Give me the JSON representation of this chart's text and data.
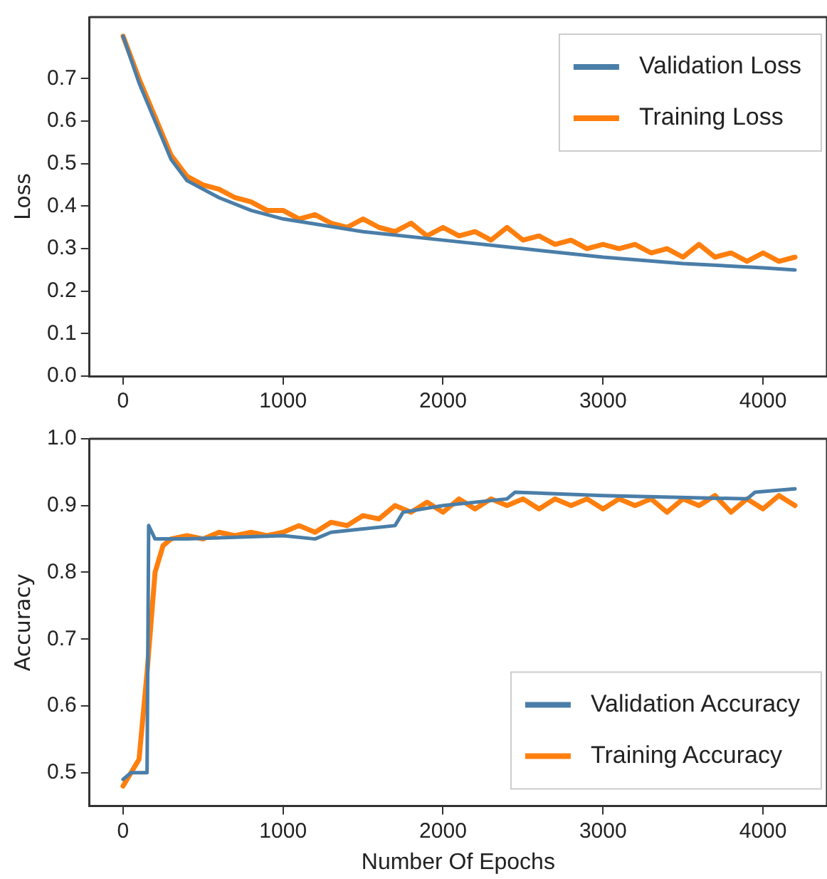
{
  "chart_data": [
    {
      "type": "line",
      "ylabel": "Loss",
      "xlim": [
        -210,
        4400
      ],
      "xticks": [
        0,
        1000,
        2000,
        3000,
        4000
      ],
      "ylim": [
        0,
        0.845
      ],
      "yticks": [
        {
          "value": 0,
          "label": "0.0"
        },
        0.1,
        0.2,
        0.3,
        0.4,
        0.5,
        0.6,
        0.7
      ],
      "grid": false,
      "legend": "top right",
      "marker": "none",
      "line_style": "solid",
      "series": [
        {
          "name": "Validation Loss",
          "color": "#4a7ea8",
          "x": [
            0,
            100,
            200,
            300,
            400,
            600,
            800,
            1000,
            1500,
            2000,
            2500,
            3000,
            3500,
            4000,
            4200
          ],
          "values": [
            0.8,
            0.69,
            0.6,
            0.51,
            0.46,
            0.42,
            0.39,
            0.37,
            0.34,
            0.32,
            0.3,
            0.28,
            0.265,
            0.255,
            0.25
          ]
        },
        {
          "name": "Training Loss",
          "color": "#ff7f0e",
          "x": [
            0,
            100,
            200,
            300,
            400,
            500,
            600,
            700,
            800,
            900,
            1000,
            1100,
            1200,
            1300,
            1400,
            1500,
            1600,
            1700,
            1800,
            1900,
            2000,
            2100,
            2200,
            2300,
            2400,
            2500,
            2600,
            2700,
            2800,
            2900,
            3000,
            3100,
            3200,
            3300,
            3400,
            3500,
            3600,
            3700,
            3800,
            3900,
            4000,
            4100,
            4200
          ],
          "values": [
            0.8,
            0.7,
            0.61,
            0.52,
            0.47,
            0.45,
            0.44,
            0.42,
            0.41,
            0.39,
            0.39,
            0.37,
            0.38,
            0.36,
            0.35,
            0.37,
            0.35,
            0.34,
            0.36,
            0.33,
            0.35,
            0.33,
            0.34,
            0.32,
            0.35,
            0.32,
            0.33,
            0.31,
            0.32,
            0.3,
            0.31,
            0.3,
            0.31,
            0.29,
            0.3,
            0.28,
            0.31,
            0.28,
            0.29,
            0.27,
            0.29,
            0.27,
            0.28
          ]
        }
      ]
    },
    {
      "type": "line",
      "xlabel": "Number Of Epochs",
      "ylabel": "Accuracy",
      "xlim": [
        -210,
        4400
      ],
      "xticks": [
        0,
        1000,
        2000,
        3000,
        4000
      ],
      "ylim": [
        0.45,
        1.0
      ],
      "yticks": [
        0.5,
        0.6,
        0.7,
        0.8,
        0.9,
        {
          "value": 1,
          "label": "1.0"
        }
      ],
      "grid": false,
      "legend": "bottom right",
      "marker": "none",
      "line_style": "solid",
      "series": [
        {
          "name": "Validation Accuracy",
          "color": "#4a7ea8",
          "x": [
            0,
            50,
            150,
            160,
            200,
            400,
            1000,
            1200,
            1300,
            1700,
            1750,
            2000,
            2400,
            2450,
            3000,
            3900,
            3950,
            4200
          ],
          "values": [
            0.49,
            0.5,
            0.5,
            0.87,
            0.85,
            0.85,
            0.855,
            0.85,
            0.86,
            0.87,
            0.89,
            0.9,
            0.91,
            0.92,
            0.915,
            0.91,
            0.92,
            0.925
          ]
        },
        {
          "name": "Training Accuracy",
          "color": "#ff7f0e",
          "x": [
            0,
            50,
            100,
            150,
            200,
            250,
            300,
            400,
            500,
            600,
            700,
            800,
            900,
            1000,
            1100,
            1200,
            1300,
            1400,
            1500,
            1600,
            1700,
            1800,
            1900,
            2000,
            2100,
            2200,
            2300,
            2400,
            2500,
            2600,
            2700,
            2800,
            2900,
            3000,
            3100,
            3200,
            3300,
            3400,
            3500,
            3600,
            3700,
            3800,
            3900,
            4000,
            4100,
            4200
          ],
          "values": [
            0.48,
            0.5,
            0.52,
            0.65,
            0.8,
            0.84,
            0.85,
            0.855,
            0.85,
            0.86,
            0.855,
            0.86,
            0.855,
            0.86,
            0.87,
            0.86,
            0.875,
            0.87,
            0.885,
            0.88,
            0.9,
            0.89,
            0.905,
            0.89,
            0.91,
            0.895,
            0.91,
            0.9,
            0.91,
            0.895,
            0.91,
            0.9,
            0.91,
            0.895,
            0.91,
            0.9,
            0.91,
            0.89,
            0.91,
            0.9,
            0.915,
            0.89,
            0.91,
            0.895,
            0.915,
            0.9
          ]
        }
      ]
    }
  ]
}
